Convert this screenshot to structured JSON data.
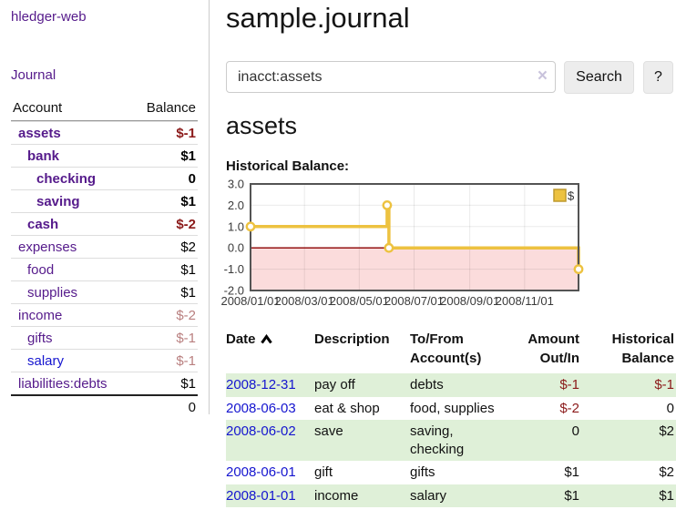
{
  "colors": {
    "link_purple": "#551A8B",
    "link_blue": "#1515CF",
    "negative_strong": "#8B1A1A",
    "negative_soft": "#B97F7F",
    "row_stripe_green": "#DFF0D8",
    "chart_line_gold": "#EDC240",
    "chart_negative_fill": "#FBDCDC",
    "chart_zero_line": "#8B0000"
  },
  "sidebar": {
    "brand": "hledger-web",
    "nav_journal": "Journal",
    "account_header": "Account",
    "balance_header": "Balance",
    "rows": [
      {
        "name": "assets",
        "balance": "$-1"
      },
      {
        "name": "bank",
        "balance": "$1"
      },
      {
        "name": "checking",
        "balance": "0"
      },
      {
        "name": "saving",
        "balance": "$1"
      },
      {
        "name": "cash",
        "balance": "$-2"
      },
      {
        "name": "expenses",
        "balance": "$2"
      },
      {
        "name": "food",
        "balance": "$1"
      },
      {
        "name": "supplies",
        "balance": "$1"
      },
      {
        "name": "income",
        "balance": "$-2"
      },
      {
        "name": "gifts",
        "balance": "$-1"
      },
      {
        "name": "salary",
        "balance": "$-1"
      },
      {
        "name": "liabilities:debts",
        "balance": "$1"
      }
    ],
    "total": "0"
  },
  "header": {
    "title": "sample.journal"
  },
  "search": {
    "value": "inacct:assets",
    "clear_icon": "×",
    "search_label": "Search",
    "help_label": "?"
  },
  "account_page": {
    "heading": "assets",
    "chart_title": "Historical Balance:"
  },
  "chart_data": {
    "type": "line",
    "step": true,
    "title": "Historical Balance",
    "series": [
      {
        "name": "$",
        "color": "#EDC240",
        "points": [
          [
            "2008-01-01",
            1
          ],
          [
            "2008-06-01",
            2
          ],
          [
            "2008-06-03",
            0
          ],
          [
            "2008-12-31",
            -1
          ]
        ]
      }
    ],
    "xlim": [
      "2008-01-01",
      "2008-12-31"
    ],
    "ylim": [
      -2,
      3
    ],
    "x_ticks": [
      "2008/01/01",
      "2008/03/01",
      "2008/05/01",
      "2008/07/01",
      "2008/09/01",
      "2008/11/01"
    ],
    "y_ticks": [
      3.0,
      2.0,
      1.0,
      0.0,
      -1.0,
      -2.0
    ],
    "grid": true,
    "legend_position": "top-right",
    "negative_region_fill": "#FBDCDC",
    "zero_line_color": "#8B0000"
  },
  "register": {
    "headers": {
      "date": "Date",
      "description": "Description",
      "accounts": "To/From Account(s)",
      "amount": "Amount Out/In",
      "balance": "Historical Balance"
    },
    "rows": [
      {
        "date": "2008-12-31",
        "description": "pay off",
        "accounts": "debts",
        "amount": "$-1",
        "balance": "$-1",
        "amount_class": "neg",
        "balance_class": "neg"
      },
      {
        "date": "2008-06-03",
        "description": "eat & shop",
        "accounts": "food, supplies",
        "amount": "$-2",
        "balance": "0",
        "amount_class": "neg",
        "balance_class": ""
      },
      {
        "date": "2008-06-02",
        "description": "save",
        "accounts": "saving, checking",
        "amount": "0",
        "balance": "$2",
        "amount_class": "",
        "balance_class": ""
      },
      {
        "date": "2008-06-01",
        "description": "gift",
        "accounts": "gifts",
        "amount": "$1",
        "balance": "$2",
        "amount_class": "",
        "balance_class": ""
      },
      {
        "date": "2008-01-01",
        "description": "income",
        "accounts": "salary",
        "amount": "$1",
        "balance": "$1",
        "amount_class": "",
        "balance_class": ""
      }
    ]
  }
}
